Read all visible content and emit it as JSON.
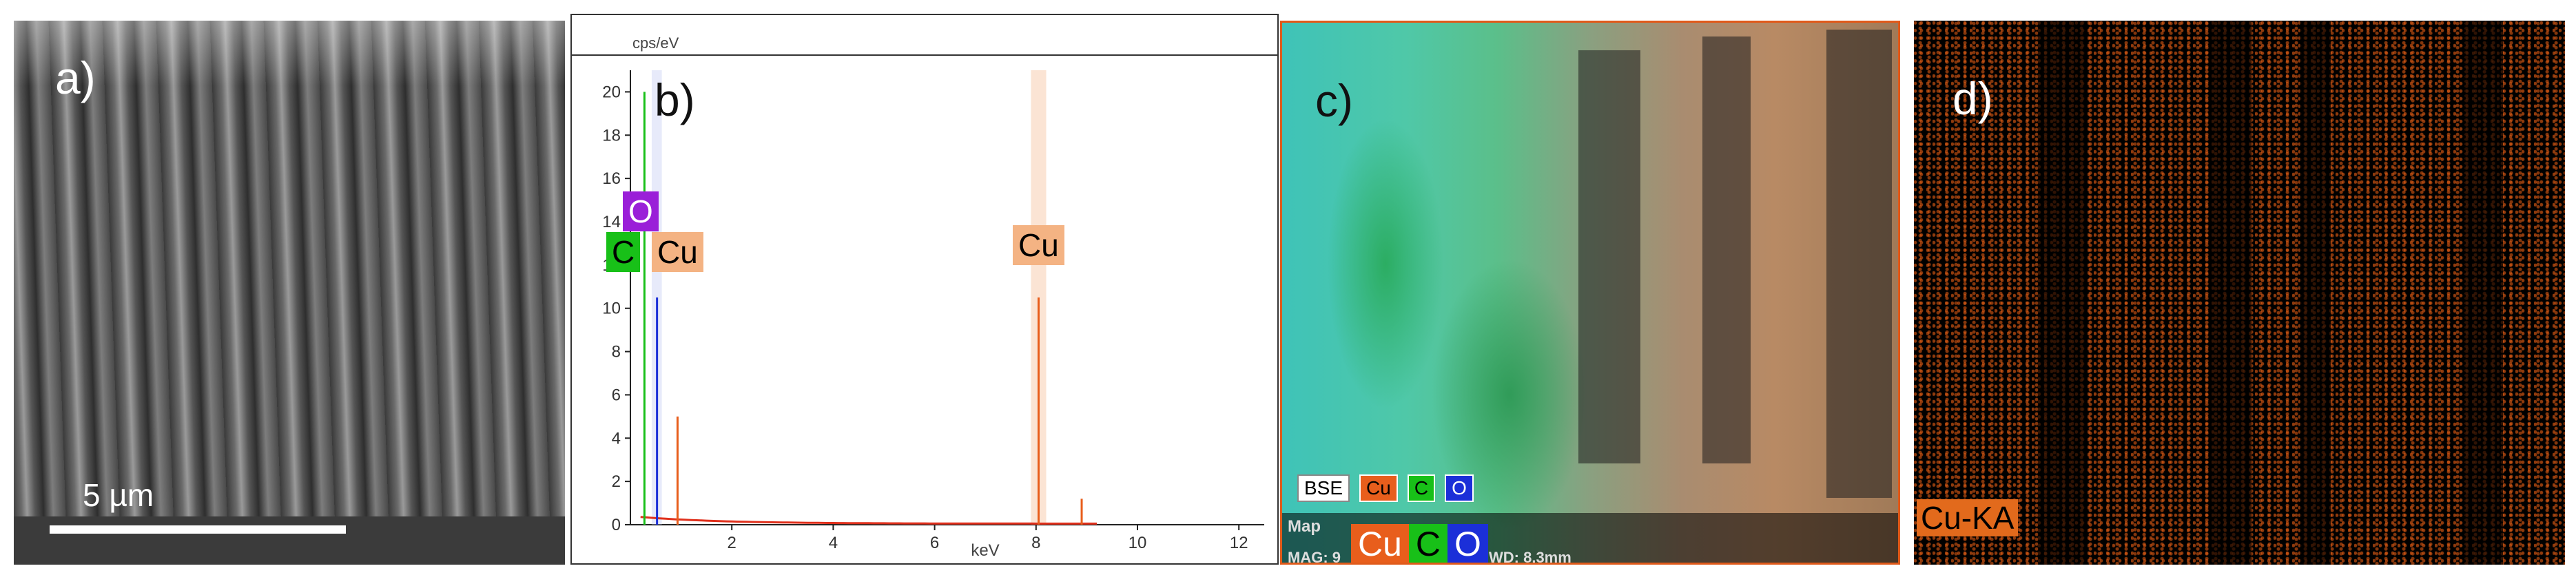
{
  "panels": {
    "a": {
      "label": "a)",
      "scale_bar": "5 µm"
    },
    "b": {
      "label": "b)",
      "y_unit": "cps/eV",
      "x_unit": "keV",
      "y_ticks": [
        "0",
        "2",
        "4",
        "6",
        "8",
        "10",
        "12",
        "14",
        "16",
        "18",
        "20"
      ],
      "x_ticks": [
        "2",
        "4",
        "6",
        "8",
        "10",
        "12"
      ],
      "peak_labels": {
        "o": "O",
        "c": "C",
        "cu_l": "Cu",
        "cu_k": "Cu"
      }
    },
    "c": {
      "label": "c)",
      "legend": [
        "BSE",
        "Cu",
        "C",
        "O"
      ],
      "map_text": "Map",
      "mag_text": "MAG: 9",
      "wd_text": "WD: 8.3mm",
      "element_tags": [
        "Cu",
        "C",
        "O"
      ]
    },
    "d": {
      "label": "d)",
      "element_line": "Cu-KA"
    }
  },
  "chart_data": {
    "type": "line",
    "title": "",
    "xlabel": "keV",
    "ylabel": "cps/eV",
    "xlim": [
      0,
      12.5
    ],
    "ylim": [
      0,
      21
    ],
    "series": [
      {
        "name": "C",
        "color": "#18c018",
        "x": [
          0.277
        ],
        "y": [
          20.0
        ]
      },
      {
        "name": "O",
        "color": "#1b2fd8",
        "x": [
          0.525
        ],
        "y": [
          10.5
        ]
      },
      {
        "name": "Cu",
        "color": "#e85e1c",
        "x": [
          0.93,
          8.05,
          8.9
        ],
        "y": [
          5.0,
          10.5,
          1.2
        ]
      }
    ],
    "peak_annotations": [
      {
        "text": "O",
        "x": 0.525
      },
      {
        "text": "C",
        "x": 0.277
      },
      {
        "text": "Cu",
        "x": 0.93
      },
      {
        "text": "Cu",
        "x": 8.05
      }
    ]
  },
  "colors": {
    "cu": "#e85e1c",
    "c": "#18c018",
    "o": "#1b2fd8",
    "o_tag": "#9a1fd8"
  }
}
